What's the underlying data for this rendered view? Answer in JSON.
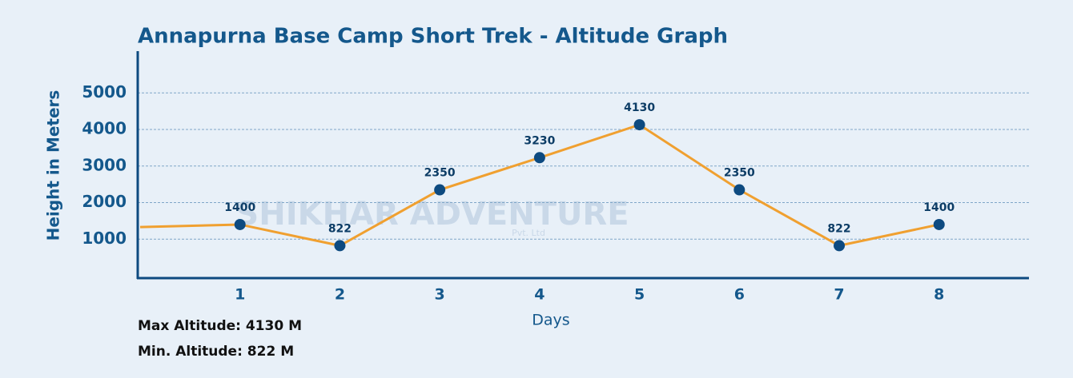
{
  "chart_data": {
    "type": "line",
    "title": "Annapurna Base Camp Short Trek - Altitude Graph",
    "watermark": "SHIKHAR ADVENTURE",
    "watermark_sub": "Pvt. Ltd",
    "x_label": "Days",
    "y_label": "Height in Meters",
    "x": [
      0,
      1,
      2,
      3,
      4,
      5,
      6,
      7,
      8
    ],
    "series": [
      {
        "color": "#f0a030",
        "marker_color": "#0d4a80",
        "values": [
          1330,
          1400,
          822,
          2350,
          3230,
          4130,
          2350,
          822,
          1400
        ]
      }
    ],
    "xlim": [
      0,
      8.9
    ],
    "xticks": [
      1,
      2,
      3,
      4,
      5,
      6,
      7,
      8
    ],
    "ylim": [
      0,
      6100
    ],
    "yticks": [
      1000,
      2000,
      3000,
      4000,
      5000
    ],
    "grid": true,
    "annotations": [
      "Max Altitude: 4130 M",
      "Min. Altitude: 822 M"
    ]
  }
}
